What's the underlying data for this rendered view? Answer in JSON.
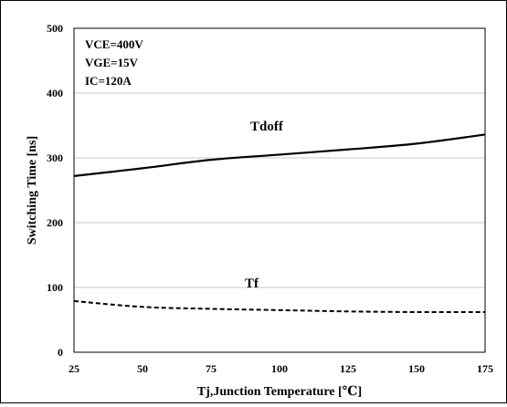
{
  "chart_data": {
    "type": "line",
    "xlabel": "Tj,Junction Temperature [℃]",
    "ylabel": "Switching Time [ns]",
    "xlim": [
      25,
      175
    ],
    "ylim": [
      0,
      500
    ],
    "xticks": [
      "25",
      "50",
      "75",
      "100",
      "125",
      "150",
      "175"
    ],
    "yticks": [
      "0",
      "100",
      "200",
      "300",
      "400",
      "500"
    ],
    "grid": "horizontal",
    "annotations": [
      "VCE=400V",
      "VGE=15V",
      "IC=120A"
    ],
    "series": [
      {
        "name": "Tdoff",
        "style": "solid",
        "color": "#000000",
        "x": [
          25,
          50,
          75,
          100,
          125,
          150,
          175
        ],
        "y": [
          272,
          284,
          297,
          305,
          313,
          322,
          336
        ]
      },
      {
        "name": "Tf",
        "style": "dashed",
        "color": "#000000",
        "x": [
          25,
          50,
          75,
          100,
          125,
          150,
          175
        ],
        "y": [
          79,
          70,
          67,
          65,
          63,
          62,
          62
        ]
      }
    ]
  }
}
